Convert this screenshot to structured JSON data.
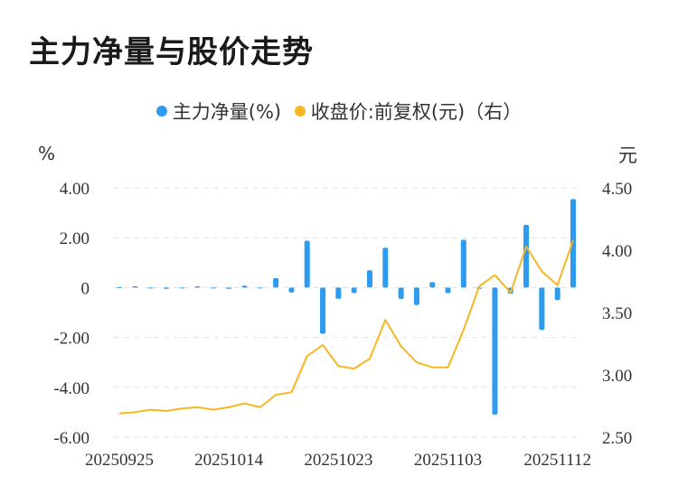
{
  "chart_data": {
    "type": "bar+line",
    "title": "主力净量与股价走势",
    "legend_placement": "top-center",
    "series": [
      {
        "name": "主力净量(%)",
        "type": "bar",
        "axis": "left",
        "color": "#2d9bf0",
        "values": [
          0.02,
          0.05,
          0.0,
          -0.05,
          0.0,
          0.05,
          0.0,
          -0.05,
          0.08,
          -0.03,
          0.38,
          -0.2,
          1.88,
          -1.85,
          -0.45,
          -0.22,
          0.7,
          1.6,
          -0.45,
          -0.7,
          0.22,
          -0.22,
          1.92,
          -0.05,
          -5.1,
          -0.25,
          2.52,
          -1.7,
          -0.5,
          3.55
        ]
      },
      {
        "name": "收盘价:前复权(元)（右）",
        "type": "line",
        "axis": "right",
        "color": "#f5b820",
        "values": [
          2.69,
          2.7,
          2.72,
          2.71,
          2.73,
          2.74,
          2.72,
          2.74,
          2.77,
          2.74,
          2.84,
          2.86,
          3.15,
          3.24,
          3.07,
          3.05,
          3.13,
          3.44,
          3.23,
          3.1,
          3.06,
          3.06,
          3.36,
          3.71,
          3.8,
          3.66,
          4.03,
          3.83,
          3.72,
          4.08
        ]
      }
    ],
    "x_tick_labels": [
      "20250925",
      "20251014",
      "20251023",
      "20251103",
      "20251112"
    ],
    "x_tick_indices": [
      0,
      7,
      14,
      21,
      28
    ],
    "left_axis": {
      "unit": "%",
      "ylim": [
        -6,
        4
      ],
      "ticks": [
        4,
        2,
        0,
        -2,
        -4,
        -6
      ],
      "tick_labels": [
        "4.00",
        "2.00",
        "0",
        "-2.00",
        "-4.00",
        "-6.00"
      ]
    },
    "right_axis": {
      "unit": "元",
      "ylim": [
        2.5,
        4.5
      ],
      "ticks": [
        4.5,
        4.0,
        3.5,
        3.0,
        2.5
      ],
      "tick_labels": [
        "4.50",
        "4.00",
        "3.50",
        "3.00",
        "2.50"
      ]
    },
    "grid": true
  }
}
